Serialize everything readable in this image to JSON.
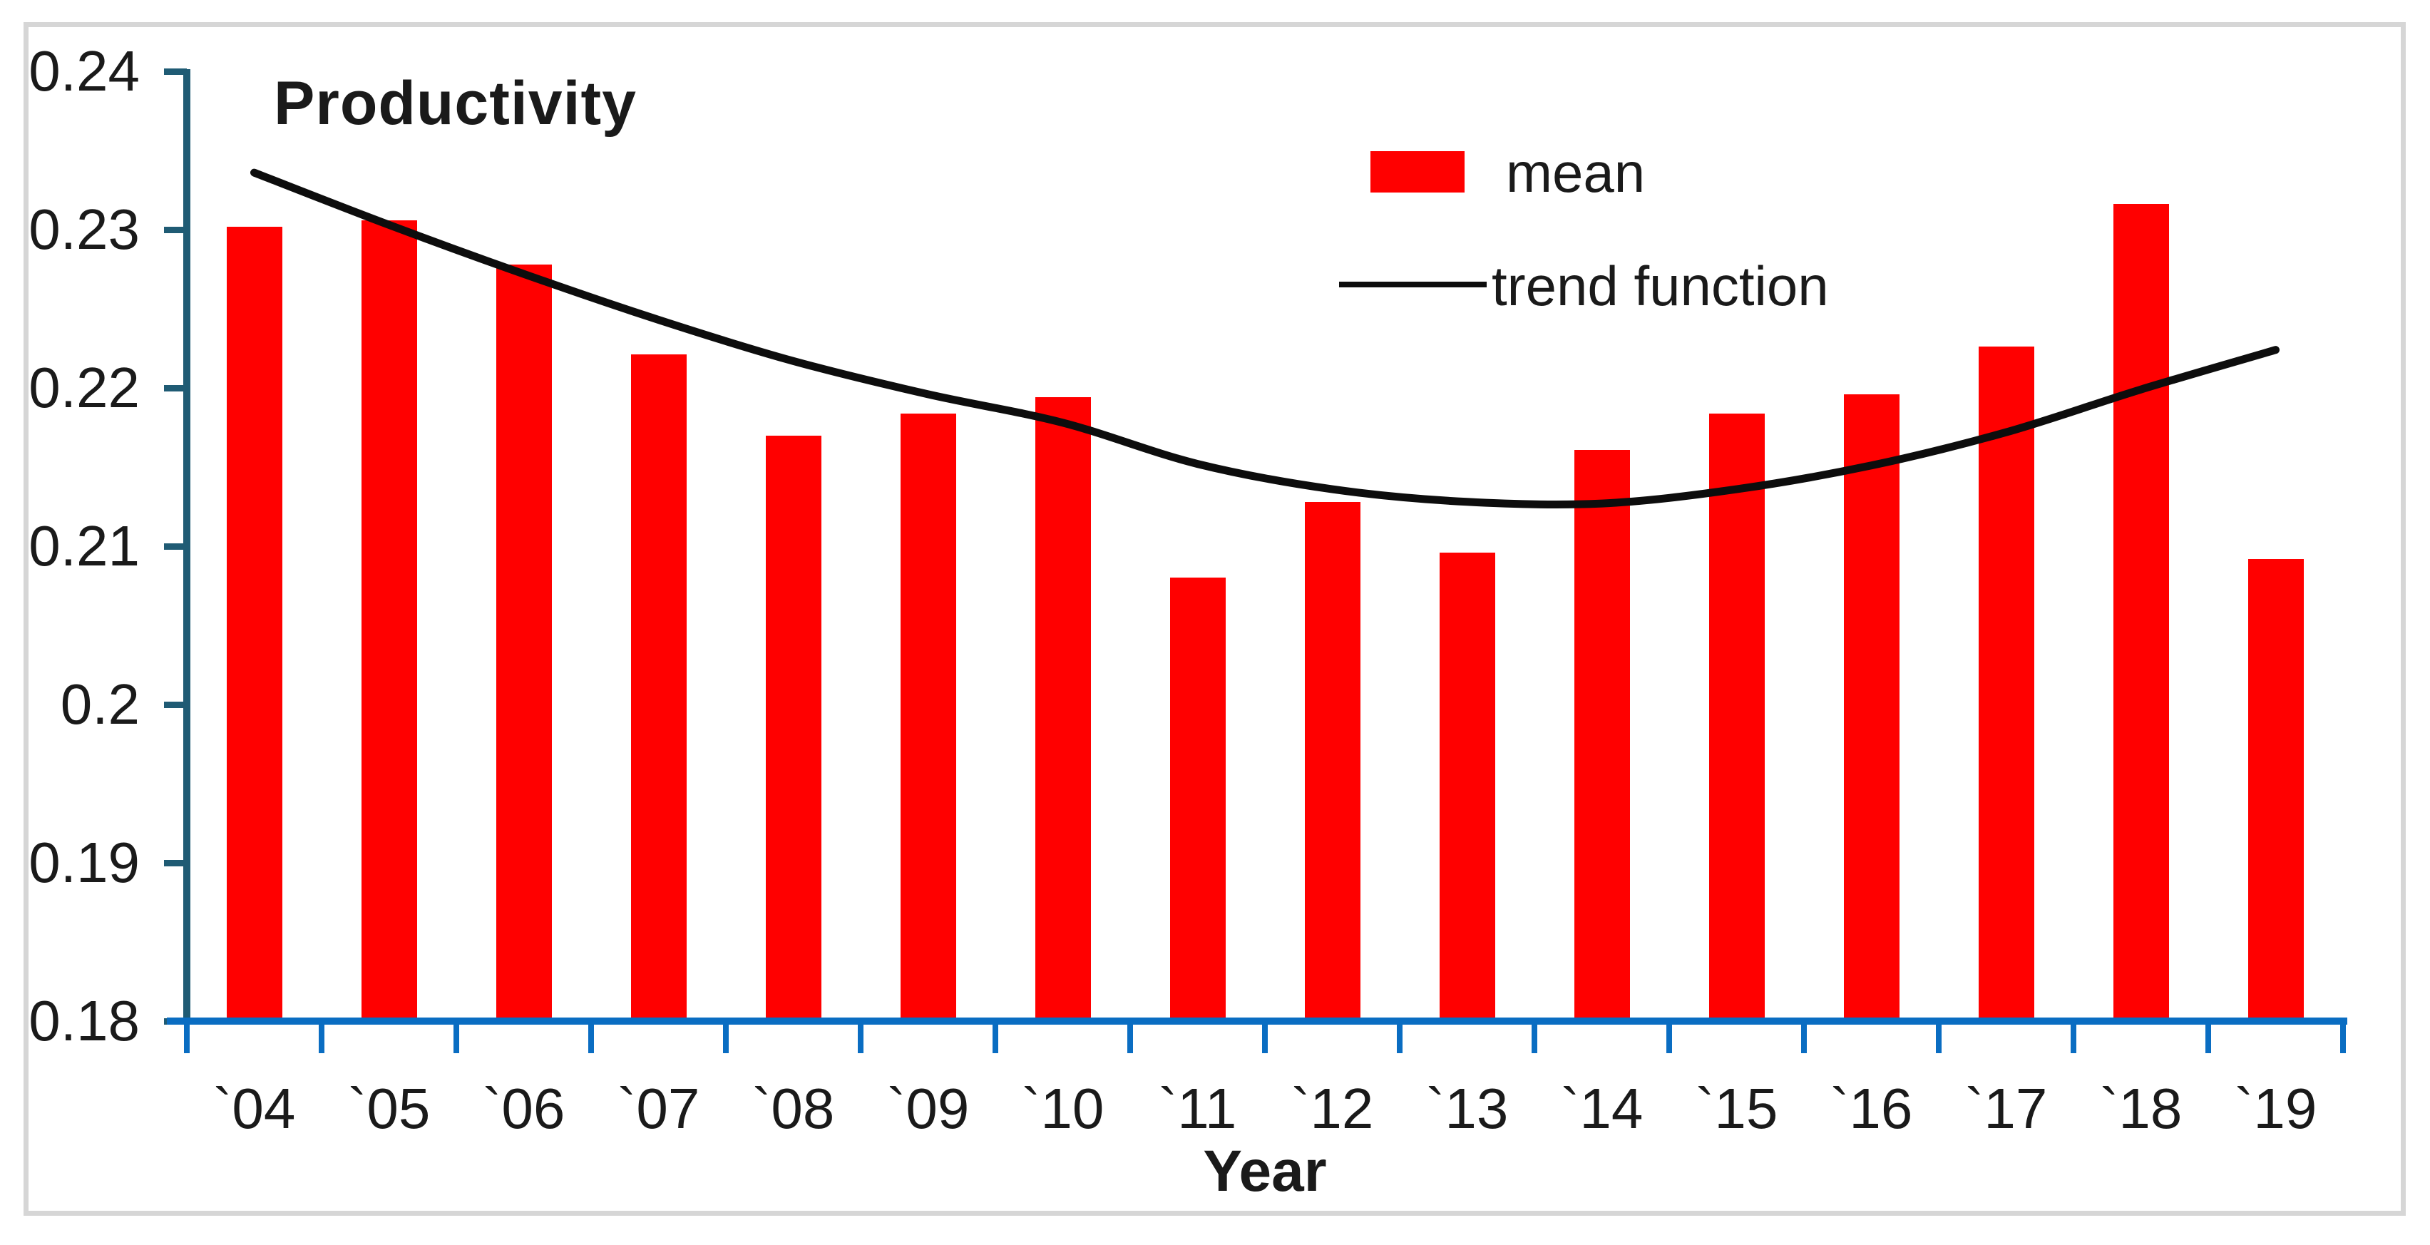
{
  "chart_data": {
    "type": "bar",
    "title": "Productivity",
    "xlabel": "Year",
    "ylabel": "",
    "categories": [
      "`04",
      "`05",
      "`06",
      "`07",
      "`08",
      "`09",
      "`10",
      "`11",
      "`12",
      "`13",
      "`14",
      "`15",
      "`16",
      "`17",
      "`18",
      "`19"
    ],
    "series": [
      {
        "name": "mean",
        "type": "bar",
        "color": "#FF0000",
        "values": [
          0.2302,
          0.2306,
          0.2278,
          0.2221,
          0.217,
          0.2184,
          0.2194,
          0.208,
          0.2128,
          0.2096,
          0.2161,
          0.2184,
          0.2196,
          0.2226,
          0.2316,
          0.2092
        ]
      },
      {
        "name": "trend function",
        "type": "line",
        "color": "#0d0d0d",
        "values": [
          0.2336,
          0.2303,
          0.2272,
          0.2243,
          0.2217,
          0.2196,
          0.2178,
          0.2152,
          0.2136,
          0.2128,
          0.2127,
          0.2136,
          0.2151,
          0.2172,
          0.2199,
          0.2224
        ]
      }
    ],
    "ylim": [
      0.18,
      0.24
    ],
    "ytick_step": 0.01,
    "ytick_labels": [
      "0.18",
      "0.19",
      "0.2",
      "0.21",
      "0.22",
      "0.23",
      "0.24"
    ],
    "grid": false,
    "legend_position": "top-center"
  },
  "colors": {
    "bar": "#FF0000",
    "trend": "#0d0d0d",
    "y_axis": "#1F5B74",
    "x_axis": "#0A6DC2",
    "text": "#1a1a1a",
    "frame": "#D6D6D6"
  }
}
